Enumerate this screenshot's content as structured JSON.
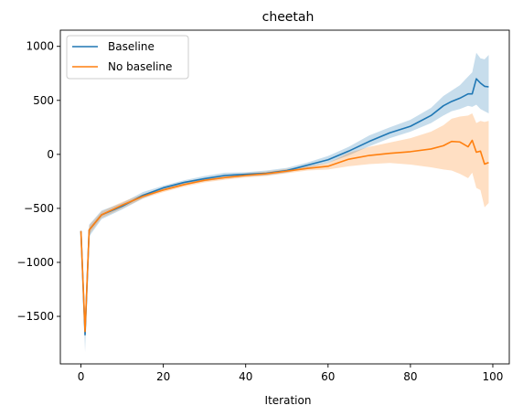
{
  "chart_data": {
    "type": "line",
    "title": "cheetah",
    "xlabel": "Iteration",
    "ylabel": "",
    "xlim": [
      -5,
      104
    ],
    "ylim": [
      -1940,
      1150
    ],
    "xticks": [
      0,
      20,
      40,
      60,
      80,
      100
    ],
    "yticks": [
      -1500,
      -1000,
      -500,
      0,
      500,
      1000
    ],
    "ytick_labels": [
      "−1500",
      "−1000",
      "−500",
      "0",
      "500",
      "1000"
    ],
    "grid": false,
    "legend_position": "top-left",
    "series": [
      {
        "name": "Baseline",
        "color": "#1f77b4",
        "band_opacity": 0.25,
        "x": [
          0,
          1,
          2,
          5,
          10,
          15,
          20,
          25,
          30,
          35,
          40,
          45,
          50,
          55,
          60,
          65,
          70,
          75,
          80,
          85,
          88,
          90,
          92,
          94,
          95,
          96,
          97,
          98,
          99
        ],
        "y": [
          -710,
          -1670,
          -700,
          -560,
          -480,
          -380,
          -310,
          -260,
          -225,
          -195,
          -185,
          -175,
          -150,
          -100,
          -50,
          30,
          120,
          200,
          260,
          360,
          450,
          490,
          520,
          560,
          560,
          700,
          660,
          630,
          625
        ],
        "lower": [
          -730,
          -1830,
          -760,
          -600,
          -510,
          -410,
          -330,
          -280,
          -250,
          -220,
          -205,
          -195,
          -170,
          -125,
          -80,
          -10,
          75,
          150,
          210,
          290,
          360,
          400,
          420,
          450,
          440,
          460,
          420,
          400,
          380
        ],
        "upper": [
          -690,
          -1560,
          -650,
          -520,
          -450,
          -350,
          -290,
          -240,
          -200,
          -170,
          -165,
          -150,
          -125,
          -75,
          -15,
          70,
          175,
          250,
          320,
          430,
          540,
          590,
          640,
          720,
          760,
          940,
          890,
          880,
          920
        ]
      },
      {
        "name": "No baseline",
        "color": "#ff7f0e",
        "band_opacity": 0.25,
        "x": [
          0,
          1,
          2,
          5,
          10,
          15,
          20,
          25,
          30,
          35,
          40,
          45,
          50,
          55,
          60,
          65,
          70,
          75,
          80,
          85,
          88,
          90,
          92,
          94,
          95,
          96,
          97,
          98,
          99
        ],
        "y": [
          -710,
          -1640,
          -700,
          -560,
          -470,
          -390,
          -330,
          -280,
          -240,
          -215,
          -195,
          -180,
          -155,
          -130,
          -110,
          -45,
          -10,
          10,
          25,
          50,
          80,
          120,
          115,
          70,
          130,
          20,
          30,
          -90,
          -75
        ],
        "lower": [
          -730,
          -1700,
          -740,
          -590,
          -500,
          -410,
          -350,
          -300,
          -260,
          -235,
          -215,
          -200,
          -175,
          -150,
          -140,
          -110,
          -90,
          -80,
          -95,
          -120,
          -140,
          -150,
          -180,
          -220,
          -170,
          -310,
          -330,
          -490,
          -450
        ],
        "upper": [
          -690,
          -1590,
          -660,
          -530,
          -440,
          -370,
          -310,
          -260,
          -220,
          -195,
          -175,
          -160,
          -135,
          -110,
          -80,
          15,
          70,
          110,
          150,
          210,
          270,
          330,
          350,
          360,
          380,
          290,
          310,
          300,
          310
        ]
      }
    ]
  }
}
